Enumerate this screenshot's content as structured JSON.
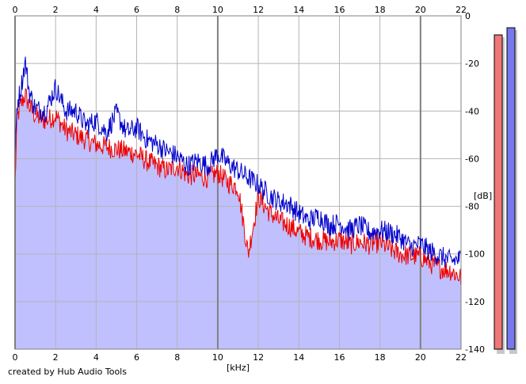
{
  "chart_data": {
    "type": "area",
    "xlabel": "[kHz]",
    "ylabel": "[dB]",
    "xlim": [
      0,
      22
    ],
    "ylim": [
      -140,
      0
    ],
    "x_ticks": [
      "0",
      "2",
      "4",
      "6",
      "8",
      "10",
      "12",
      "14",
      "16",
      "18",
      "20",
      "22"
    ],
    "y_ticks": [
      "0",
      "-20",
      "-40",
      "-60",
      "-80",
      "-100",
      "-120",
      "-140"
    ],
    "grid": true,
    "x_major_ticks": [
      0,
      10,
      20
    ],
    "series": [
      {
        "channel": "left",
        "line_color": "#ee0000",
        "fill_color": "#c0c0ff",
        "x": [
          0,
          0.1,
          0.3,
          0.5,
          0.7,
          1.0,
          1.5,
          2.0,
          2.5,
          3.0,
          3.5,
          4.0,
          4.5,
          5.0,
          5.5,
          6.0,
          6.5,
          7.0,
          7.5,
          8.0,
          8.5,
          9.0,
          9.5,
          10.0,
          10.5,
          11.0,
          11.5,
          12.0,
          12.5,
          13.0,
          13.5,
          14.0,
          14.5,
          15.0,
          15.5,
          16.0,
          16.5,
          17.0,
          17.5,
          18.0,
          18.5,
          19.0,
          19.5,
          20.0,
          20.5,
          21.0,
          21.5,
          22.0
        ],
        "y": [
          -70,
          -43,
          -37,
          -33,
          -38,
          -42,
          -44,
          -42,
          -48,
          -50,
          -52,
          -54,
          -55,
          -56,
          -57,
          -58,
          -61,
          -63,
          -65,
          -63,
          -67,
          -67,
          -68,
          -66,
          -70,
          -72,
          -100,
          -76,
          -82,
          -86,
          -88,
          -91,
          -93,
          -94,
          -95,
          -94,
          -96,
          -95,
          -96,
          -95,
          -98,
          -100,
          -101,
          -101,
          -104,
          -106,
          -107,
          -110
        ]
      },
      {
        "channel": "right",
        "line_color": "#0000cc",
        "x": [
          0,
          0.1,
          0.3,
          0.5,
          0.7,
          1.0,
          1.5,
          2.0,
          2.5,
          3.0,
          3.5,
          4.0,
          4.5,
          5.0,
          5.5,
          6.0,
          6.5,
          7.0,
          7.5,
          8.0,
          8.5,
          9.0,
          9.5,
          10.0,
          10.5,
          11.0,
          11.5,
          12.0,
          12.5,
          13.0,
          13.5,
          14.0,
          14.5,
          15.0,
          15.5,
          16.0,
          16.5,
          17.0,
          17.5,
          18.0,
          18.5,
          19.0,
          19.5,
          20.0,
          20.5,
          21.0,
          21.5,
          22.0
        ],
        "y": [
          -60,
          -37,
          -30,
          -19,
          -32,
          -39,
          -40,
          -30,
          -40,
          -40,
          -46,
          -44,
          -49,
          -41,
          -49,
          -47,
          -52,
          -54,
          -57,
          -59,
          -63,
          -61,
          -63,
          -58,
          -62,
          -65,
          -68,
          -71,
          -75,
          -78,
          -79,
          -83,
          -86,
          -84,
          -88,
          -87,
          -90,
          -88,
          -91,
          -90,
          -91,
          -93,
          -97,
          -96,
          -99,
          -101,
          -103,
          -102
        ]
      }
    ],
    "level_meters": [
      {
        "channel": "left",
        "color": "#ee7777",
        "level_db": -8
      },
      {
        "channel": "right",
        "color": "#7777ee",
        "level_db": -5
      }
    ]
  },
  "footer": {
    "credit": "created by Hub Audio Tools"
  }
}
